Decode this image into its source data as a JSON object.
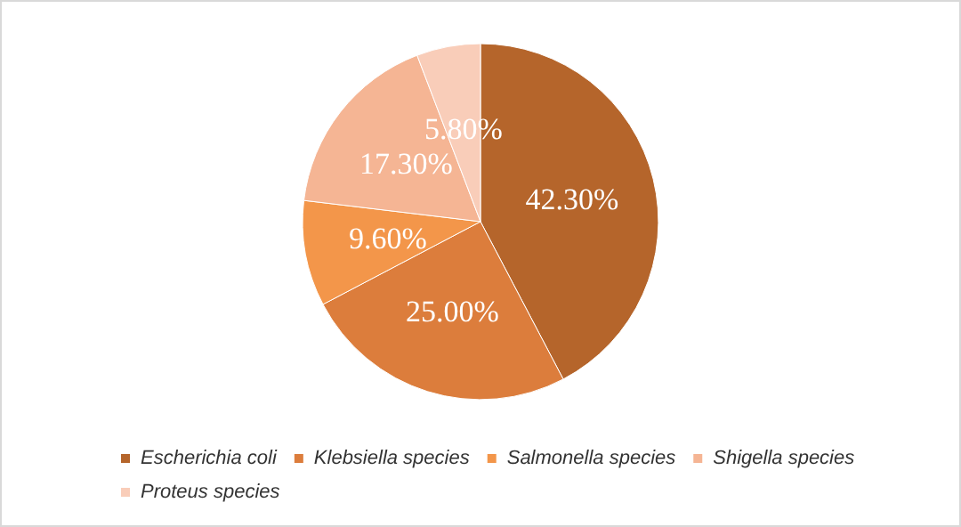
{
  "chart_data": {
    "type": "pie",
    "categories": [
      "Escherichia coli",
      "Klebsiella species",
      "Salmonella species",
      "Shigella species",
      "Proteus species"
    ],
    "values": [
      42.3,
      25.0,
      9.6,
      17.3,
      5.8
    ],
    "colors": [
      "#b5652b",
      "#dc7d3c",
      "#f3964a",
      "#f5b594",
      "#f9cdb9"
    ],
    "value_labels": [
      "42.30%",
      "25.00%",
      "9.60%",
      "17.30%",
      "5.80%"
    ],
    "legend": "bottom"
  }
}
